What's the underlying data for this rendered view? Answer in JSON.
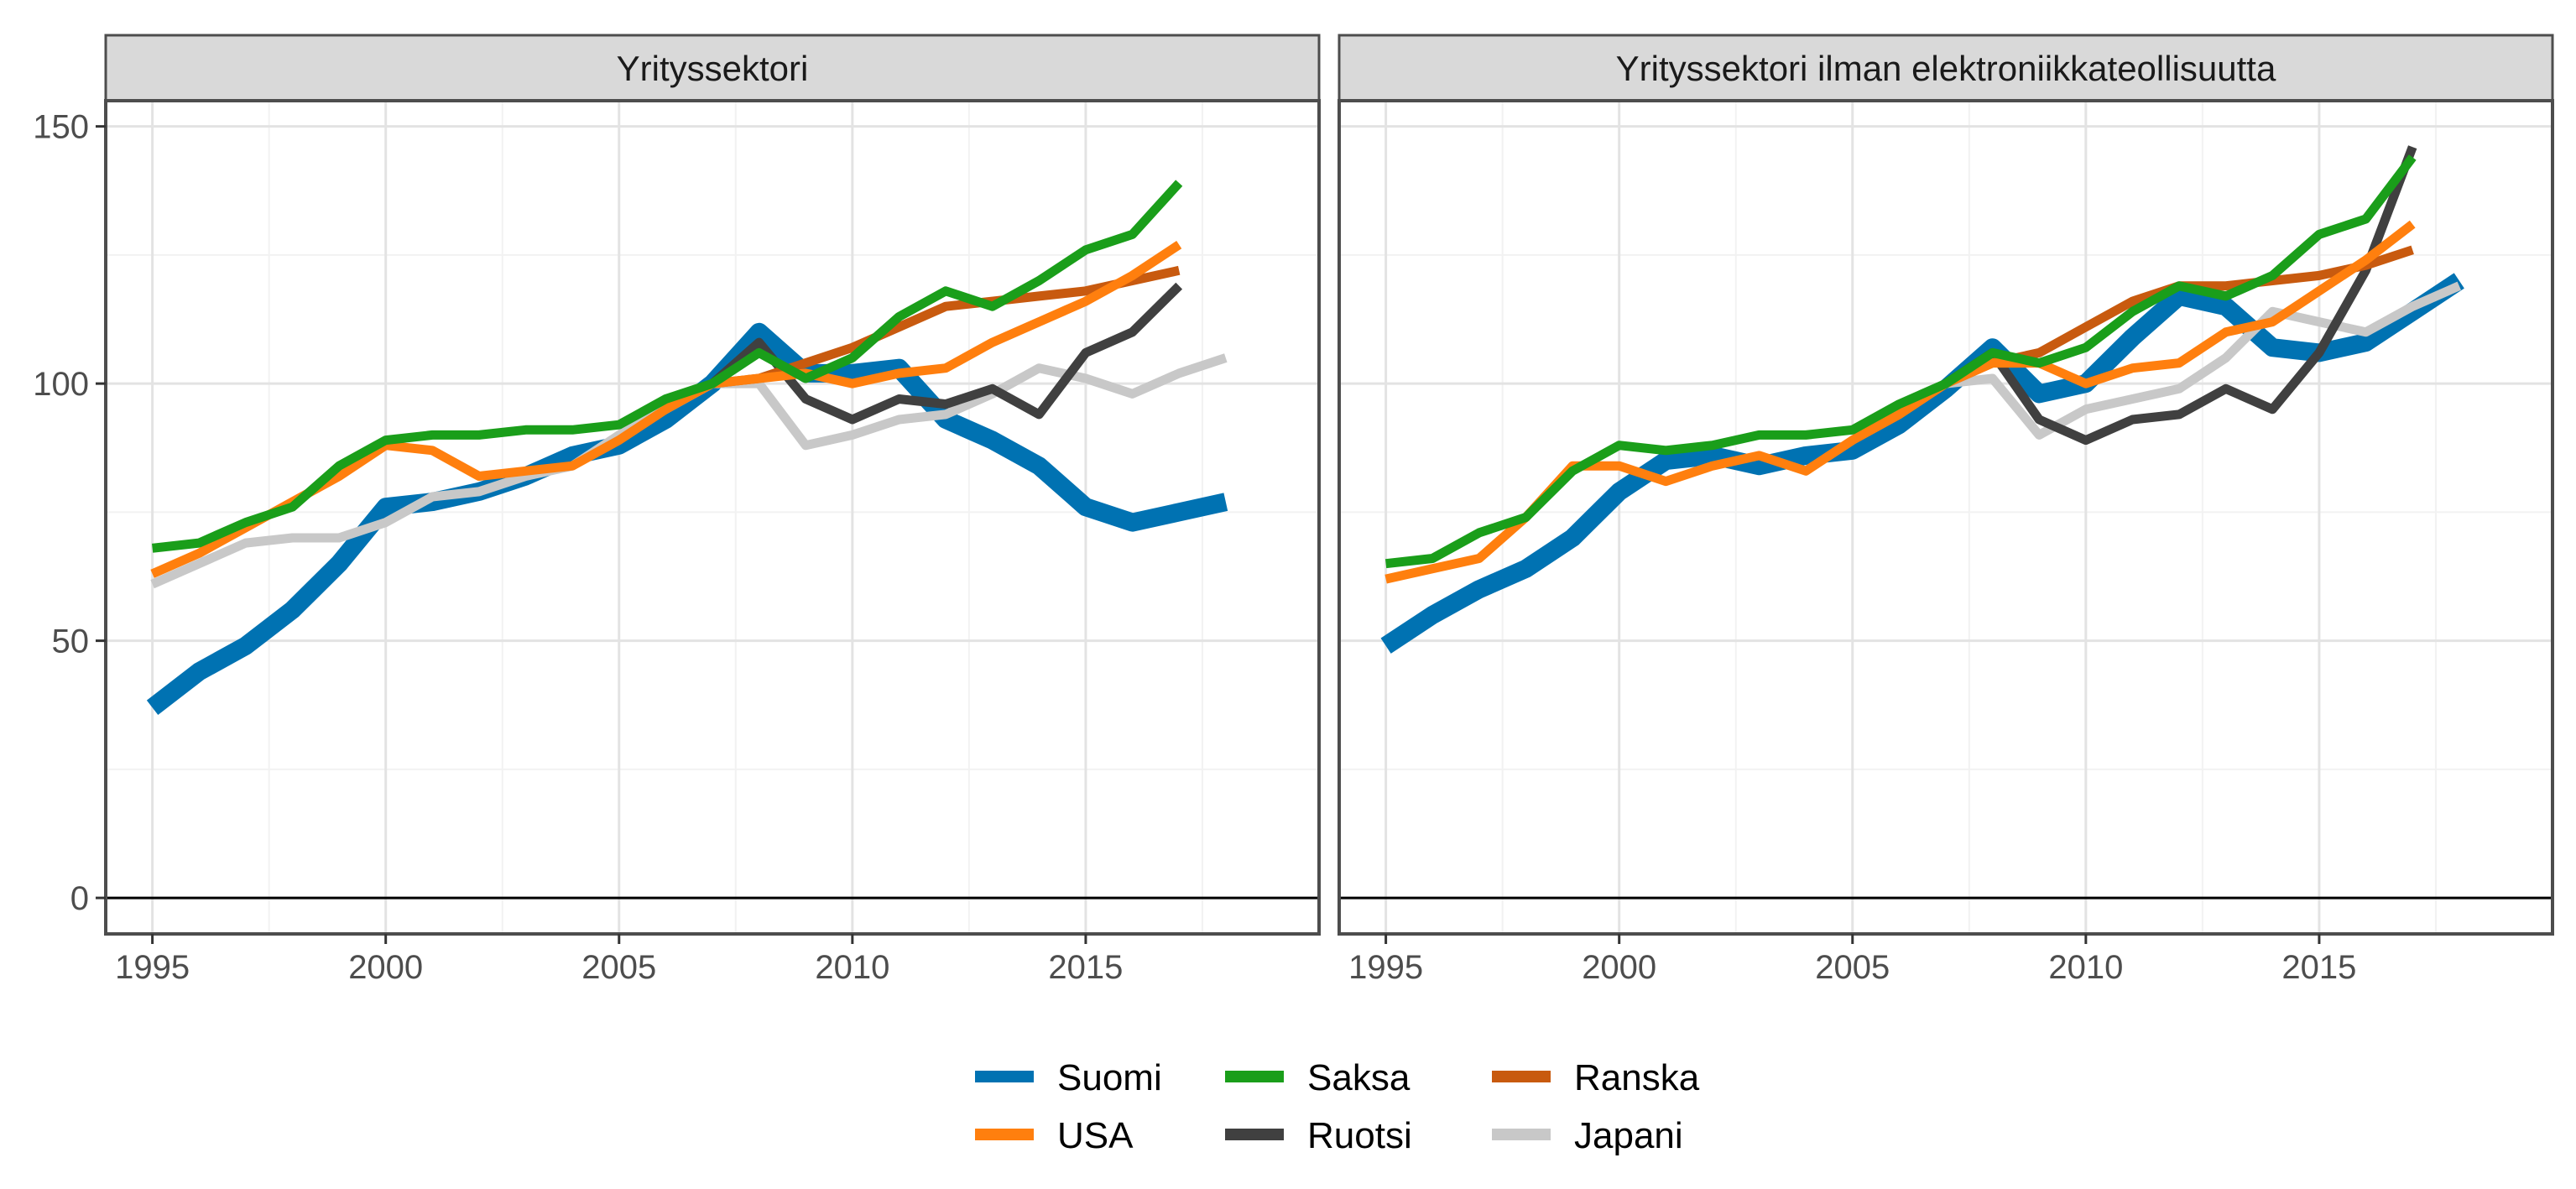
{
  "chart_data": {
    "type": "line",
    "facets": [
      {
        "title": "Yrityssektori",
        "series": [
          {
            "name": "Suomi",
            "color": "#0072B2",
            "x": [
              1995,
              1996,
              1997,
              1998,
              1999,
              2000,
              2001,
              2002,
              2003,
              2004,
              2005,
              2006,
              2007,
              2008,
              2009,
              2010,
              2011,
              2012,
              2013,
              2014,
              2015,
              2016,
              2017,
              2018
            ],
            "values": [
              37,
              44,
              49,
              56,
              65,
              76,
              77,
              79,
              82,
              86,
              88,
              93,
              100,
              110,
              102,
              102,
              103,
              93,
              89,
              84,
              76,
              73,
              75,
              77
            ]
          },
          {
            "name": "USA",
            "color": "#FF7F0E",
            "x": [
              1995,
              1996,
              1997,
              1998,
              1999,
              2000,
              2001,
              2002,
              2003,
              2004,
              2005,
              2006,
              2007,
              2008,
              2009,
              2010,
              2011,
              2012,
              2013,
              2014,
              2015,
              2016,
              2017
            ],
            "values": [
              63,
              67,
              72,
              77,
              82,
              88,
              87,
              82,
              83,
              84,
              89,
              95,
              100,
              101,
              102,
              100,
              102,
              103,
              108,
              112,
              116,
              121,
              127
            ]
          },
          {
            "name": "Saksa",
            "color": "#1A9E1A",
            "x": [
              1995,
              1996,
              1997,
              1998,
              1999,
              2000,
              2001,
              2002,
              2003,
              2004,
              2005,
              2006,
              2007,
              2008,
              2009,
              2010,
              2011,
              2012,
              2013,
              2014,
              2015,
              2016,
              2017
            ],
            "values": [
              68,
              69,
              73,
              76,
              84,
              89,
              90,
              90,
              91,
              91,
              92,
              97,
              100,
              106,
              101,
              105,
              113,
              118,
              115,
              120,
              126,
              129,
              139
            ]
          },
          {
            "name": "Ruotsi",
            "color": "#404040",
            "x": [
              2007,
              2008,
              2009,
              2010,
              2011,
              2012,
              2013,
              2014,
              2015,
              2016,
              2017
            ],
            "values": [
              100,
              108,
              97,
              93,
              97,
              96,
              99,
              94,
              106,
              110,
              119
            ]
          },
          {
            "name": "Ranska",
            "color": "#C85A0F",
            "x": [
              2007,
              2008,
              2009,
              2010,
              2011,
              2012,
              2013,
              2014,
              2015,
              2016,
              2017
            ],
            "values": [
              100,
              101,
              104,
              107,
              111,
              115,
              116,
              117,
              118,
              120,
              122
            ]
          },
          {
            "name": "Japani",
            "color": "#C8C8C8",
            "x": [
              1995,
              1996,
              1997,
              1998,
              1999,
              2000,
              2001,
              2002,
              2003,
              2004,
              2005,
              2006,
              2007,
              2008,
              2009,
              2010,
              2011,
              2012,
              2013,
              2014,
              2015,
              2016,
              2017,
              2018
            ],
            "values": [
              61,
              65,
              69,
              70,
              70,
              73,
              78,
              79,
              82,
              84,
              90,
              95,
              100,
              100,
              88,
              90,
              93,
              94,
              98,
              103,
              101,
              98,
              102,
              105
            ]
          }
        ]
      },
      {
        "title": "Yrityssektori ilman elektroniikkateollisuutta",
        "series": [
          {
            "name": "Suomi",
            "color": "#0072B2",
            "x": [
              1995,
              1996,
              1997,
              1998,
              1999,
              2000,
              2001,
              2002,
              2003,
              2004,
              2005,
              2006,
              2007,
              2008,
              2009,
              2010,
              2011,
              2012,
              2013,
              2014,
              2015,
              2016,
              2017,
              2018
            ],
            "values": [
              49,
              55,
              60,
              64,
              70,
              79,
              85,
              86,
              84,
              86,
              87,
              92,
              99,
              107,
              98,
              100,
              109,
              117,
              115,
              107,
              106,
              108,
              114,
              120
            ]
          },
          {
            "name": "USA",
            "color": "#FF7F0E",
            "x": [
              1995,
              1996,
              1997,
              1998,
              1999,
              2000,
              2001,
              2002,
              2003,
              2004,
              2005,
              2006,
              2007,
              2008,
              2009,
              2010,
              2011,
              2012,
              2013,
              2014,
              2015,
              2016,
              2017
            ],
            "values": [
              62,
              64,
              66,
              74,
              84,
              84,
              81,
              84,
              86,
              83,
              89,
              94,
              100,
              104,
              104,
              100,
              103,
              104,
              110,
              112,
              118,
              124,
              131
            ]
          },
          {
            "name": "Saksa",
            "color": "#1A9E1A",
            "x": [
              1995,
              1996,
              1997,
              1998,
              1999,
              2000,
              2001,
              2002,
              2003,
              2004,
              2005,
              2006,
              2007,
              2008,
              2009,
              2010,
              2011,
              2012,
              2013,
              2014,
              2015,
              2016,
              2017
            ],
            "values": [
              65,
              66,
              71,
              74,
              83,
              88,
              87,
              88,
              90,
              90,
              91,
              96,
              100,
              106,
              104,
              107,
              114,
              119,
              117,
              121,
              129,
              132,
              144
            ]
          },
          {
            "name": "Ruotsi",
            "color": "#404040",
            "x": [
              2007,
              2008,
              2009,
              2010,
              2011,
              2012,
              2013,
              2014,
              2015,
              2016,
              2017
            ],
            "values": [
              100,
              106,
              93,
              89,
              93,
              94,
              99,
              95,
              106,
              122,
              146
            ]
          },
          {
            "name": "Ranska",
            "color": "#C85A0F",
            "x": [
              2007,
              2008,
              2009,
              2010,
              2011,
              2012,
              2013,
              2014,
              2015,
              2016,
              2017
            ],
            "values": [
              100,
              104,
              106,
              111,
              116,
              119,
              119,
              120,
              121,
              123,
              126
            ]
          },
          {
            "name": "Japani",
            "color": "#C8C8C8",
            "x": [
              2007,
              2008,
              2009,
              2010,
              2011,
              2012,
              2013,
              2014,
              2015,
              2016,
              2017,
              2018
            ],
            "values": [
              100,
              101,
              90,
              95,
              97,
              99,
              105,
              114,
              112,
              110,
              115,
              119
            ]
          }
        ]
      }
    ],
    "xlim": [
      1994,
      2020
    ],
    "ylim": [
      -7,
      155
    ],
    "xticks": [
      1995,
      2000,
      2005,
      2010,
      2015
    ],
    "yticks": [
      0,
      50,
      100,
      150
    ],
    "reference_line_y": 0,
    "grid": true,
    "legend": {
      "placement": "bottom",
      "entries": [
        "Suomi",
        "USA",
        "Saksa",
        "Ruotsi",
        "Ranska",
        "Japani"
      ]
    },
    "xlabel": "",
    "ylabel": ""
  }
}
